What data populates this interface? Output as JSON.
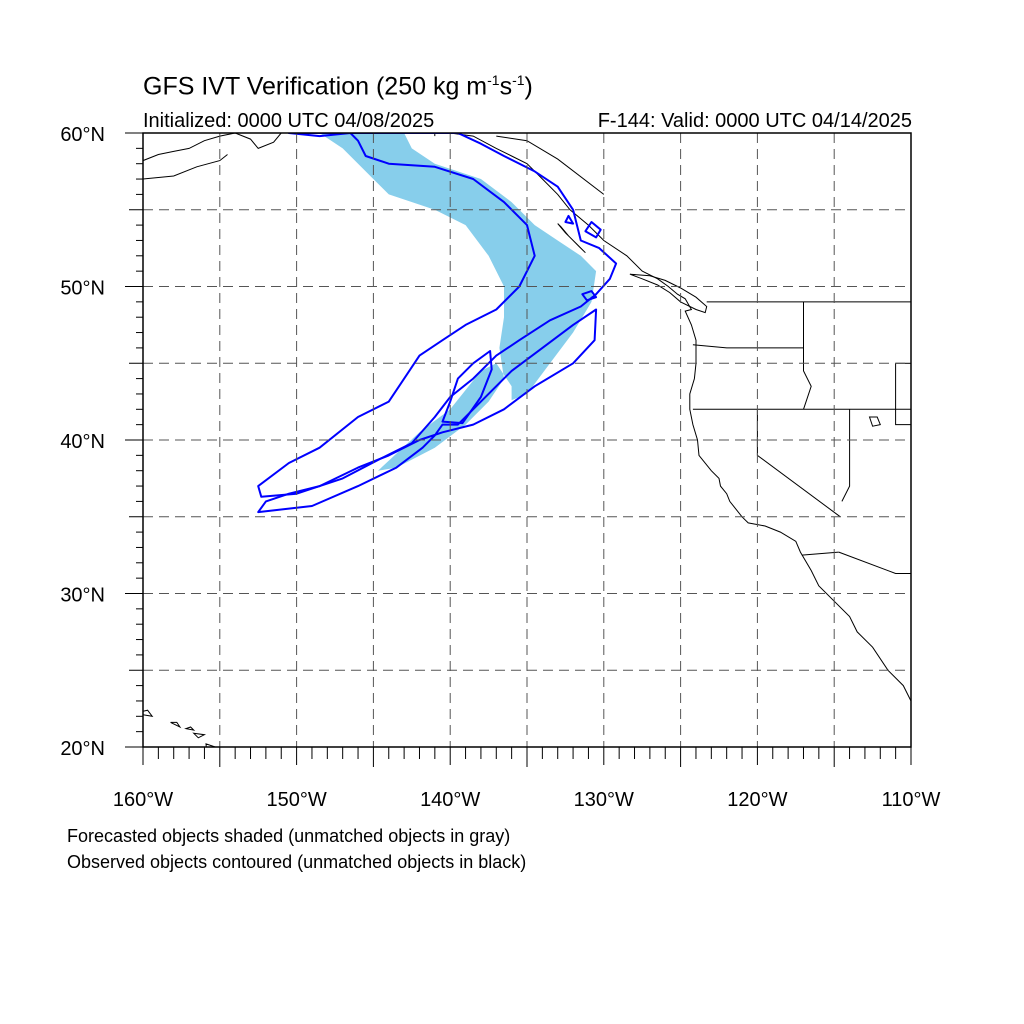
{
  "header": {
    "title_main": "GFS IVT Verification (250 kg m",
    "title_exp1": "-1",
    "title_mid": "s",
    "title_exp2": "-1",
    "title_end": ")",
    "initialized": "Initialized: 0000 UTC 04/08/2025",
    "valid": "F-144: Valid: 0000 UTC 04/14/2025"
  },
  "map": {
    "lon_range": [
      -160,
      -110
    ],
    "lat_range": [
      20,
      60
    ],
    "lat_labels": [
      {
        "lat": 60,
        "text": "60°N"
      },
      {
        "lat": 50,
        "text": "50°N"
      },
      {
        "lat": 40,
        "text": "40°N"
      },
      {
        "lat": 30,
        "text": "30°N"
      },
      {
        "lat": 20,
        "text": "20°N"
      }
    ],
    "lon_labels": [
      {
        "lon": -160,
        "text": "160°W"
      },
      {
        "lon": -150,
        "text": "150°W"
      },
      {
        "lon": -140,
        "text": "140°W"
      },
      {
        "lon": -130,
        "text": "130°W"
      },
      {
        "lon": -120,
        "text": "120°W"
      },
      {
        "lon": -110,
        "text": "110°W"
      }
    ],
    "grid_step_deg": 5,
    "colors": {
      "forecast_shading": "#87ceeb",
      "observed_contour": "#0000ff",
      "coast": "#000000",
      "grid": "#555555"
    },
    "forecast_object": [
      [
        -148.5,
        60
      ],
      [
        -143,
        60
      ],
      [
        -142.5,
        59
      ],
      [
        -141,
        58
      ],
      [
        -138,
        57
      ],
      [
        -136,
        55.5
      ],
      [
        -134.5,
        54
      ],
      [
        -133,
        53
      ],
      [
        -131.5,
        52
      ],
      [
        -130.5,
        51
      ],
      [
        -130.8,
        49
      ],
      [
        -132,
        47
      ],
      [
        -133.5,
        45
      ],
      [
        -135,
        43
      ],
      [
        -136,
        42.6
      ],
      [
        -136,
        43.5
      ],
      [
        -137,
        45
      ],
      [
        -138,
        44.5
      ],
      [
        -140,
        42
      ],
      [
        -142,
        40.5
      ],
      [
        -144.7,
        38
      ],
      [
        -143.5,
        38.2
      ],
      [
        -141,
        39.5
      ],
      [
        -139,
        41
      ],
      [
        -137.5,
        42.5
      ],
      [
        -136.5,
        44
      ],
      [
        -136.8,
        46
      ],
      [
        -136.5,
        48
      ],
      [
        -136.5,
        50
      ],
      [
        -137.5,
        52
      ],
      [
        -139,
        54
      ],
      [
        -141,
        55
      ],
      [
        -144,
        56
      ],
      [
        -145.5,
        57.5
      ],
      [
        -147,
        59
      ],
      [
        -148.5,
        60
      ]
    ],
    "observed_contour_outer": [
      [
        -150.5,
        60
      ],
      [
        -148.5,
        59.8
      ],
      [
        -146.5,
        60
      ],
      [
        -146,
        59.5
      ],
      [
        -145.5,
        58.5
      ],
      [
        -144,
        58
      ],
      [
        -141,
        57.8
      ],
      [
        -138.5,
        57
      ],
      [
        -136.5,
        55.5
      ],
      [
        -135,
        54
      ],
      [
        -134.5,
        52
      ],
      [
        -135.5,
        50
      ],
      [
        -137,
        48.5
      ],
      [
        -139,
        47.5
      ],
      [
        -140.5,
        46.5
      ],
      [
        -142,
        45.5
      ],
      [
        -144,
        42.5
      ],
      [
        -146,
        41.5
      ],
      [
        -148.5,
        39.5
      ],
      [
        -150.5,
        38.5
      ],
      [
        -152.5,
        37
      ],
      [
        -152.3,
        36.3
      ],
      [
        -150,
        36.5
      ],
      [
        -147,
        37.5
      ],
      [
        -144.5,
        38.8
      ],
      [
        -142.5,
        39.8
      ],
      [
        -141,
        41.5
      ],
      [
        -140,
        42.8
      ],
      [
        -138.5,
        44
      ],
      [
        -137,
        45.5
      ],
      [
        -135.5,
        46.5
      ],
      [
        -133.5,
        47.8
      ],
      [
        -131.5,
        48.7
      ],
      [
        -130.5,
        49.5
      ],
      [
        -129.6,
        50.5
      ],
      [
        -129.2,
        51.5
      ],
      [
        -130.3,
        52.5
      ],
      [
        -131.5,
        53
      ],
      [
        -132,
        55
      ],
      [
        -133,
        56.5
      ],
      [
        -134.5,
        57.5
      ],
      [
        -136.5,
        58.5
      ],
      [
        -138,
        59.3
      ],
      [
        -139.5,
        60
      ],
      [
        -150.5,
        60
      ]
    ],
    "observed_contour_inner": [
      [
        -152.5,
        35.3
      ],
      [
        -149,
        35.7
      ],
      [
        -146,
        37
      ],
      [
        -143.5,
        38.2
      ],
      [
        -141.8,
        39.5
      ],
      [
        -141,
        40.3
      ],
      [
        -140.5,
        41
      ],
      [
        -139.5,
        41
      ],
      [
        -138,
        42.5
      ],
      [
        -136,
        44.5
      ],
      [
        -134,
        46
      ],
      [
        -132,
        47.5
      ],
      [
        -130.5,
        48.5
      ],
      [
        -130.6,
        46.5
      ],
      [
        -132,
        45
      ],
      [
        -134.5,
        43.5
      ],
      [
        -136.5,
        42
      ],
      [
        -138.5,
        41
      ],
      [
        -140.5,
        40.5
      ],
      [
        -142,
        40
      ],
      [
        -144,
        39
      ],
      [
        -146,
        38.2
      ],
      [
        -148.5,
        37
      ],
      [
        -150.5,
        36.5
      ],
      [
        -152,
        36
      ],
      [
        -152.5,
        35.3
      ]
    ],
    "observed_contour_inner2": [
      [
        -139.2,
        41.1
      ],
      [
        -138,
        42.8
      ],
      [
        -137.3,
        44.6
      ],
      [
        -137.4,
        45.8
      ],
      [
        -138.5,
        45
      ],
      [
        -139.5,
        44
      ],
      [
        -140,
        42.5
      ],
      [
        -140.5,
        41.2
      ],
      [
        -139.2,
        41.1
      ]
    ],
    "observed_islands": [
      [
        [
          -130.8,
          54.2
        ],
        [
          -131.2,
          53.6
        ],
        [
          -130.5,
          53.2
        ],
        [
          -130.2,
          53.7
        ],
        [
          -130.8,
          54.2
        ]
      ],
      [
        [
          -131.4,
          49.5
        ],
        [
          -131.1,
          49.1
        ],
        [
          -130.5,
          49.3
        ],
        [
          -130.8,
          49.7
        ],
        [
          -131.4,
          49.5
        ]
      ],
      [
        [
          -132.3,
          54.6
        ],
        [
          -132.5,
          54.2
        ],
        [
          -132.0,
          54.1
        ],
        [
          -132.3,
          54.6
        ]
      ]
    ],
    "coastline": [
      [
        -140,
        60
      ],
      [
        -138.5,
        59.8
      ],
      [
        -137,
        59
      ],
      [
        -136,
        58.5
      ],
      [
        -135,
        58
      ],
      [
        -134,
        57
      ],
      [
        -133,
        56
      ],
      [
        -132.2,
        55
      ],
      [
        -131,
        54
      ],
      [
        -130,
        53
      ],
      [
        -128.5,
        52
      ],
      [
        -127.5,
        51
      ],
      [
        -126.5,
        50.5
      ],
      [
        -125.8,
        50
      ],
      [
        -125.2,
        49.5
      ],
      [
        -124.7,
        49.2
      ],
      [
        -124.3,
        48.5
      ],
      [
        -124.7,
        48.4
      ],
      [
        -124.3,
        47.5
      ],
      [
        -124,
        46.5
      ],
      [
        -124,
        45
      ],
      [
        -124.1,
        44
      ],
      [
        -124.4,
        43
      ],
      [
        -124.4,
        42
      ],
      [
        -124.2,
        41
      ],
      [
        -123.9,
        40
      ],
      [
        -123.8,
        39
      ],
      [
        -123,
        38
      ],
      [
        -122.5,
        37.5
      ],
      [
        -122.4,
        37
      ],
      [
        -122,
        36.5
      ],
      [
        -121.8,
        36
      ],
      [
        -121,
        35
      ],
      [
        -120.6,
        34.6
      ],
      [
        -119.5,
        34.4
      ],
      [
        -118.5,
        34
      ],
      [
        -117.5,
        33.4
      ],
      [
        -117.2,
        32.7
      ],
      [
        -116.5,
        31.5
      ],
      [
        -116,
        30.5
      ],
      [
        -115,
        29.5
      ],
      [
        -114,
        28.5
      ],
      [
        -113.5,
        27.5
      ],
      [
        -112.5,
        26.5
      ],
      [
        -111.5,
        25
      ],
      [
        -110.5,
        24
      ],
      [
        -110,
        23
      ]
    ],
    "coastline_alaska": [
      [
        -160,
        58.2
      ],
      [
        -159,
        58.6
      ],
      [
        -158,
        58.8
      ],
      [
        -157,
        59
      ],
      [
        -156,
        59.5
      ],
      [
        -155,
        59.8
      ],
      [
        -154,
        60
      ],
      [
        -153,
        59.6
      ],
      [
        -152.5,
        59
      ],
      [
        -151.5,
        59.4
      ],
      [
        -151,
        60
      ]
    ],
    "coastline_gulf": [
      [
        -160,
        57
      ],
      [
        -158,
        57.2
      ],
      [
        -156.5,
        57.8
      ],
      [
        -155,
        58.2
      ],
      [
        -154.5,
        58.6
      ]
    ],
    "vancouver_island": [
      [
        -128.3,
        50.8
      ],
      [
        -127.5,
        50.5
      ],
      [
        -126.5,
        50.1
      ],
      [
        -125.7,
        49.6
      ],
      [
        -125,
        49
      ],
      [
        -124,
        48.5
      ],
      [
        -123.4,
        48.3
      ],
      [
        -123.3,
        48.7
      ],
      [
        -124,
        49.3
      ],
      [
        -125,
        49.9
      ],
      [
        -126,
        50.4
      ],
      [
        -127,
        50.7
      ],
      [
        -128.3,
        50.8
      ]
    ],
    "haida_gwaii": [
      [
        -133,
        54.1
      ],
      [
        -132.5,
        53.5
      ],
      [
        -131.8,
        52.8
      ],
      [
        -131.2,
        52.2
      ],
      [
        -131.6,
        52.6
      ],
      [
        -132.3,
        53.3
      ],
      [
        -132.8,
        53.9
      ],
      [
        -133,
        54.1
      ]
    ],
    "borders": [
      [
        [
          -123.3,
          49
        ],
        [
          -110,
          49
        ]
      ],
      [
        [
          -124.2,
          46.2
        ],
        [
          -122,
          46
        ],
        [
          -119,
          46
        ],
        [
          -117,
          46
        ]
      ],
      [
        [
          -124.2,
          42
        ],
        [
          -110,
          42
        ]
      ],
      [
        [
          -120,
          42
        ],
        [
          -120,
          39
        ],
        [
          -114.6,
          35
        ]
      ],
      [
        [
          -117,
          49
        ],
        [
          -117,
          44.5
        ],
        [
          -116.5,
          43.5
        ],
        [
          -117,
          42
        ]
      ],
      [
        [
          -114,
          42
        ],
        [
          -114,
          37
        ],
        [
          -114.5,
          36
        ]
      ],
      [
        [
          -114.7,
          32.7
        ],
        [
          -117.1,
          32.5
        ]
      ],
      [
        [
          -114.7,
          32.7
        ],
        [
          -111,
          31.3
        ],
        [
          -110,
          31.3
        ]
      ],
      [
        [
          -111,
          45
        ],
        [
          -110,
          45
        ]
      ],
      [
        [
          -111,
          45
        ],
        [
          -111,
          41
        ],
        [
          -110,
          41
        ]
      ],
      [
        [
          -141,
          60
        ],
        [
          -141,
          59.8
        ]
      ],
      [
        [
          -130,
          56
        ],
        [
          -133,
          58.3
        ],
        [
          -135,
          59.5
        ],
        [
          -137,
          59.8
        ]
      ]
    ],
    "hawaii": [
      [
        [
          -160.6,
          22.2
        ],
        [
          -159.4,
          22
        ],
        [
          -159.7,
          22.4
        ],
        [
          -160.6,
          22.2
        ]
      ],
      [
        [
          -158.2,
          21.6
        ],
        [
          -157.6,
          21.3
        ],
        [
          -157.8,
          21.6
        ],
        [
          -158.2,
          21.6
        ]
      ],
      [
        [
          -157.2,
          21.2
        ],
        [
          -156.7,
          21.1
        ],
        [
          -156.9,
          21.3
        ],
        [
          -157.2,
          21.2
        ]
      ],
      [
        [
          -156.7,
          20.9
        ],
        [
          -156,
          20.8
        ],
        [
          -156.4,
          20.6
        ],
        [
          -156.7,
          20.9
        ]
      ],
      [
        [
          -155.9,
          20.2
        ],
        [
          -155,
          19.9
        ],
        [
          -155,
          19.2
        ],
        [
          -155.8,
          19.1
        ],
        [
          -155.9,
          20.2
        ]
      ]
    ],
    "lakes": [
      [
        [
          -112.7,
          41.5
        ],
        [
          -112.2,
          41.5
        ],
        [
          -112,
          41
        ],
        [
          -112.5,
          40.9
        ],
        [
          -112.7,
          41.5
        ]
      ]
    ]
  }
}
